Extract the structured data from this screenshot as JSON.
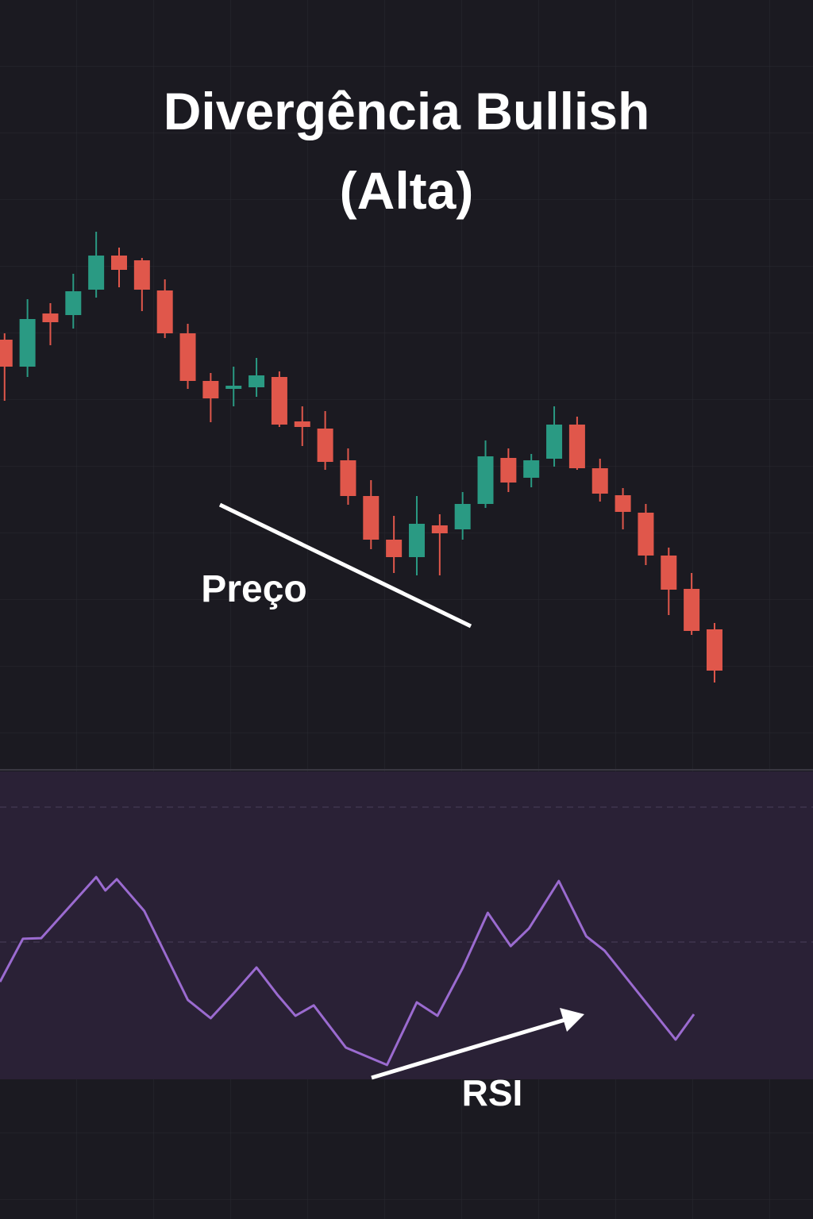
{
  "chart_data": [
    {
      "type": "candlestick",
      "title": "Divergência Bullish (Alta)",
      "annotation": "Preço",
      "open": [
        47.2,
        43.8,
        50.5,
        50.3,
        53.5,
        57.8,
        57.2,
        53.4,
        48,
        42,
        41,
        41.2,
        42.5,
        36.9,
        36,
        32,
        27.5,
        22,
        19.8,
        23.8,
        23.3,
        26.5,
        32.3,
        29.8,
        32.2,
        36.5,
        31,
        27.6,
        25.4,
        20,
        15.8,
        10.7
      ],
      "high": [
        48,
        52.3,
        51.8,
        55.5,
        60.8,
        58.8,
        57.5,
        54.8,
        49.2,
        43,
        43.8,
        44.9,
        43.2,
        38.8,
        38.2,
        33.5,
        29.5,
        25,
        27.5,
        25.2,
        28,
        34.5,
        33.5,
        32.8,
        38.8,
        37.5,
        32.2,
        28.5,
        26.5,
        21,
        17.8,
        11.5
      ],
      "low": [
        39.5,
        42.5,
        46.5,
        48.6,
        52.5,
        53.8,
        50.8,
        47.4,
        41,
        36.8,
        38.8,
        40,
        36.2,
        33.8,
        30.8,
        26.4,
        20.8,
        17.8,
        17.5,
        17.5,
        22,
        26,
        28,
        28.6,
        31.2,
        30.8,
        26.8,
        23.3,
        18.8,
        12.5,
        10,
        4
      ],
      "close": [
        43.8,
        49.8,
        49.4,
        53.3,
        57.8,
        56,
        53.5,
        48,
        42,
        39.8,
        41.4,
        42.7,
        36.5,
        36.2,
        31.8,
        27.5,
        22,
        19.8,
        24,
        22.8,
        26.5,
        32.5,
        29.2,
        32,
        36.5,
        31,
        27.8,
        25.5,
        20,
        15.7,
        10.5,
        5.5
      ],
      "up_color": "#2a9a83",
      "down_color": "#e0574b",
      "xlim": [
        -0.2,
        35.3
      ],
      "ylim": [
        0,
        60
      ]
    },
    {
      "type": "line",
      "annotation": "RSI",
      "x": [
        -0.2,
        0.8,
        1.6,
        4.0,
        4.4,
        4.9,
        6.1,
        8.0,
        9.0,
        10.0,
        11.0,
        11.9,
        12.7,
        13.5,
        14.9,
        16.7,
        18.0,
        18.9,
        20.0,
        21.1,
        22.1,
        22.9,
        24.2,
        25.4,
        26.2,
        29.3,
        30.1
      ],
      "values": [
        31.9,
        46.0,
        46.2,
        66.2,
        61.8,
        65.5,
        55.1,
        26.0,
        20.0,
        28.1,
        36.6,
        27.8,
        20.8,
        24.2,
        10.4,
        4.7,
        25.2,
        20.8,
        36.4,
        54.5,
        43.6,
        49.4,
        64.9,
        46.8,
        42.1,
        13.0,
        21.3
      ],
      "color": "#9b6bd0",
      "xlim": [
        -0.2,
        35.3
      ],
      "ylim": [
        0,
        100
      ]
    }
  ]
}
